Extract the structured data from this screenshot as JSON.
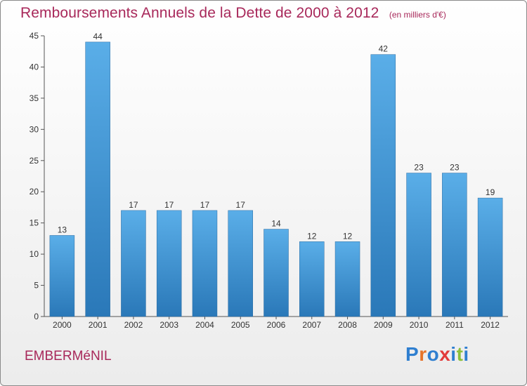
{
  "header": {
    "title": "Remboursements Annuels de la Dette de 2000 à 2012",
    "unit": "(en milliers d'€)"
  },
  "footer": {
    "commune": "EMBERMéNIL",
    "brand": "Proxiti"
  },
  "colors": {
    "title": "#a8285a",
    "bar_top": "#5aaee8",
    "bar_bottom": "#2a78b8",
    "brand_letters": [
      "#2f7fd0",
      "#e6742a",
      "#2f7fd0",
      "#e23a3a",
      "#2f7fd0",
      "#8cc03c",
      "#2f7fd0"
    ]
  },
  "chart_data": {
    "type": "bar",
    "title": "Remboursements Annuels de la Dette de 2000 à 2012",
    "categories": [
      "2000",
      "2001",
      "2002",
      "2003",
      "2004",
      "2005",
      "2006",
      "2007",
      "2008",
      "2009",
      "2010",
      "2011",
      "2012"
    ],
    "values": [
      13,
      44,
      17,
      17,
      17,
      17,
      14,
      12,
      12,
      42,
      23,
      23,
      19
    ],
    "xlabel": "",
    "ylabel": "",
    "ylim": [
      0,
      45
    ],
    "yticks": [
      0,
      5,
      10,
      15,
      20,
      25,
      30,
      35,
      40,
      45
    ],
    "grid": false,
    "data_labels": true
  }
}
